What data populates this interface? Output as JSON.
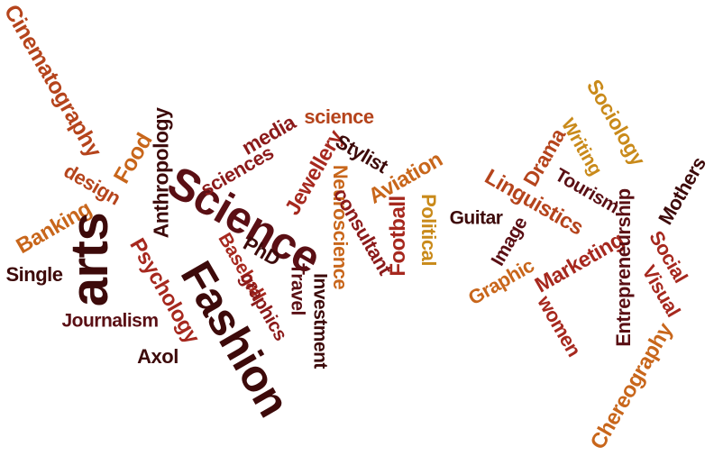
{
  "colors": {
    "darkest": "#3d0a0a",
    "dark": "#5a0f14",
    "crimson": "#8b1a1a",
    "red": "#a6281e",
    "rust": "#b5441c",
    "orange": "#c8661b",
    "gold": "#c98a1a"
  },
  "words": [
    {
      "id": "cinematography",
      "text": "Cinematography"
    },
    {
      "id": "food",
      "text": "Food"
    },
    {
      "id": "design",
      "text": "design"
    },
    {
      "id": "banking",
      "text": "Banking"
    },
    {
      "id": "anthropology",
      "text": "Anthropology"
    },
    {
      "id": "arts",
      "text": "arts"
    },
    {
      "id": "single",
      "text": "Single"
    },
    {
      "id": "psychology",
      "text": "Psychology"
    },
    {
      "id": "journalism",
      "text": "Journalism"
    },
    {
      "id": "axol",
      "text": "Axol"
    },
    {
      "id": "fashion",
      "text": "Fashion"
    },
    {
      "id": "science-big",
      "text": "Science"
    },
    {
      "id": "sciences",
      "text": "sciences"
    },
    {
      "id": "media",
      "text": "media"
    },
    {
      "id": "science-small",
      "text": "science"
    },
    {
      "id": "jewellery",
      "text": "Jewellery"
    },
    {
      "id": "stylist",
      "text": "Stylist"
    },
    {
      "id": "neuroscience",
      "text": "Neuroscience"
    },
    {
      "id": "consultant",
      "text": "consultant"
    },
    {
      "id": "aviation",
      "text": "Aviation"
    },
    {
      "id": "football",
      "text": "Football"
    },
    {
      "id": "political",
      "text": "Political"
    },
    {
      "id": "baseball",
      "text": "Baseball"
    },
    {
      "id": "phd",
      "text": "PhD"
    },
    {
      "id": "graphics",
      "text": "graphics"
    },
    {
      "id": "travel",
      "text": "Travel"
    },
    {
      "id": "investment",
      "text": "Investment"
    },
    {
      "id": "guitar",
      "text": "Guitar"
    },
    {
      "id": "image",
      "text": "Image"
    },
    {
      "id": "graphic",
      "text": "Graphic"
    },
    {
      "id": "linguistics",
      "text": "Linguistics"
    },
    {
      "id": "drama",
      "text": "Drama"
    },
    {
      "id": "writing",
      "text": "Writing"
    },
    {
      "id": "tourism",
      "text": "Tourism"
    },
    {
      "id": "sociology",
      "text": "Sociology"
    },
    {
      "id": "marketing",
      "text": "Marketing"
    },
    {
      "id": "women",
      "text": "women"
    },
    {
      "id": "entrepreneurship",
      "text": "Entrepreneurship"
    },
    {
      "id": "mothers",
      "text": "Mothers"
    },
    {
      "id": "social",
      "text": "Social"
    },
    {
      "id": "visual",
      "text": "Visual"
    },
    {
      "id": "chereography",
      "text": "Chereography"
    }
  ]
}
